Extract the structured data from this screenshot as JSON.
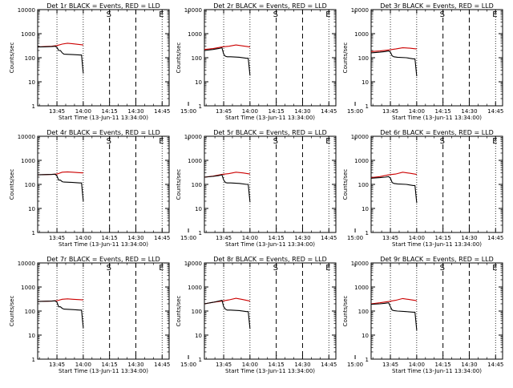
{
  "colors": {
    "events": "#000000",
    "lld": "#cc0000",
    "axes": "#000000"
  },
  "shared": {
    "xlabel": "Start Time (13-Jun-11 13:34:00)",
    "ylabel": "Counts/sec",
    "x_ticks": [
      "13:45",
      "14:00",
      "14:15",
      "14:30",
      "14:45",
      "15:00"
    ],
    "y_ticks": [
      "1",
      "10",
      "100",
      "1000",
      "10000"
    ],
    "marker_s": "S",
    "marker_e": "E"
  },
  "chart_data": [
    {
      "type": "line",
      "title": "Det 1r BLACK = Events, RED = LLD",
      "x_tick_labels": [
        "13:45",
        "14:00",
        "14:15",
        "14:30",
        "14:45",
        "15:00"
      ],
      "xlim_min": [
        0,
        75
      ],
      "ylim": [
        1,
        10000
      ],
      "y_scale": "log",
      "ylabel": "Counts/sec",
      "xlabel": "Start Time (13-Jun-11 13:34:00)",
      "vlines_dotted_min": [
        11,
        26,
        71
      ],
      "vlines_dashed_min": [
        41,
        56
      ],
      "s_marker_min": 41,
      "e_marker_min": 71,
      "series": [
        {
          "color": "#cc0000",
          "x": [
            0,
            4,
            8,
            11,
            14,
            17,
            20,
            23,
            26
          ],
          "y": [
            280,
            290,
            300,
            320,
            370,
            400,
            380,
            360,
            340
          ]
        },
        {
          "color": "#000000",
          "x": [
            0,
            4,
            8,
            10,
            11,
            12,
            13,
            14,
            15,
            20,
            24,
            25,
            26
          ],
          "y": [
            280,
            285,
            290,
            300,
            270,
            200,
            200,
            160,
            140,
            135,
            130,
            130,
            22
          ]
        }
      ]
    },
    {
      "type": "line",
      "title": "Det 2r BLACK = Events, RED = LLD",
      "x_tick_labels": [
        "13:45",
        "14:00",
        "14:15",
        "14:30",
        "14:45",
        "15:00"
      ],
      "xlim_min": [
        0,
        75
      ],
      "ylim": [
        1,
        10000
      ],
      "y_scale": "log",
      "ylabel": "Counts/sec",
      "xlabel": "Start Time (13-Jun-11 13:34:00)",
      "vlines_dotted_min": [
        11,
        26,
        71
      ],
      "vlines_dashed_min": [
        41,
        56
      ],
      "s_marker_min": 41,
      "e_marker_min": 71,
      "series": [
        {
          "color": "#cc0000",
          "x": [
            0,
            5,
            10,
            14,
            18,
            22,
            26
          ],
          "y": [
            220,
            240,
            280,
            300,
            340,
            310,
            280
          ]
        },
        {
          "color": "#000000",
          "x": [
            0,
            5,
            8,
            10,
            11,
            12,
            13,
            15,
            20,
            24,
            25,
            26
          ],
          "y": [
            200,
            220,
            240,
            260,
            140,
            115,
            110,
            110,
            105,
            95,
            95,
            18
          ]
        }
      ]
    },
    {
      "type": "line",
      "title": "Det 3r BLACK = Events, RED = LLD",
      "x_tick_labels": [
        "13:45",
        "14:00",
        "14:15",
        "14:30",
        "14:45",
        "15:00"
      ],
      "xlim_min": [
        0,
        75
      ],
      "ylim": [
        1,
        10000
      ],
      "y_scale": "log",
      "ylabel": "Counts/sec",
      "xlabel": "Start Time (13-Jun-11 13:34:00)",
      "vlines_dotted_min": [
        11,
        26,
        71
      ],
      "vlines_dashed_min": [
        41,
        56
      ],
      "s_marker_min": 41,
      "e_marker_min": 71,
      "series": [
        {
          "color": "#cc0000",
          "x": [
            0,
            5,
            10,
            14,
            18,
            22,
            26
          ],
          "y": [
            180,
            190,
            210,
            230,
            260,
            250,
            230
          ]
        },
        {
          "color": "#000000",
          "x": [
            0,
            5,
            8,
            10,
            11,
            12,
            13,
            15,
            20,
            24,
            25,
            26
          ],
          "y": [
            160,
            170,
            180,
            190,
            170,
            120,
            110,
            105,
            100,
            90,
            90,
            17
          ]
        }
      ]
    },
    {
      "type": "line",
      "title": "Det 4r BLACK = Events, RED = LLD",
      "x_tick_labels": [
        "13:45",
        "14:00",
        "14:15",
        "14:30",
        "14:45",
        "15:00"
      ],
      "xlim_min": [
        0,
        75
      ],
      "ylim": [
        1,
        10000
      ],
      "y_scale": "log",
      "ylabel": "Counts/sec",
      "xlabel": "Start Time (13-Jun-11 13:34:00)",
      "vlines_dotted_min": [
        11,
        26,
        71
      ],
      "vlines_dashed_min": [
        41,
        56
      ],
      "s_marker_min": 41,
      "e_marker_min": 71,
      "series": [
        {
          "color": "#cc0000",
          "x": [
            0,
            4,
            8,
            11,
            14,
            17,
            20,
            23,
            26
          ],
          "y": [
            250,
            255,
            260,
            270,
            320,
            330,
            320,
            310,
            300
          ]
        },
        {
          "color": "#000000",
          "x": [
            0,
            4,
            8,
            10,
            11,
            12,
            13,
            14,
            15,
            20,
            24,
            25,
            26
          ],
          "y": [
            250,
            255,
            260,
            265,
            220,
            150,
            150,
            130,
            125,
            120,
            115,
            115,
            20
          ]
        }
      ]
    },
    {
      "type": "line",
      "title": "Det 5r BLACK = Events, RED = LLD",
      "x_tick_labels": [
        "13:45",
        "14:00",
        "14:15",
        "14:30",
        "14:45",
        "15:00"
      ],
      "xlim_min": [
        0,
        75
      ],
      "ylim": [
        1,
        10000
      ],
      "y_scale": "log",
      "ylabel": "Counts/sec",
      "xlabel": "Start Time (13-Jun-11 13:34:00)",
      "vlines_dotted_min": [
        11,
        26,
        71
      ],
      "vlines_dashed_min": [
        41,
        56
      ],
      "s_marker_min": 41,
      "e_marker_min": 71,
      "series": [
        {
          "color": "#cc0000",
          "x": [
            0,
            5,
            10,
            14,
            18,
            22,
            26
          ],
          "y": [
            200,
            220,
            260,
            280,
            320,
            300,
            270
          ]
        },
        {
          "color": "#000000",
          "x": [
            0,
            5,
            8,
            10,
            11,
            12,
            13,
            15,
            20,
            24,
            25,
            26
          ],
          "y": [
            200,
            215,
            230,
            250,
            150,
            120,
            115,
            115,
            110,
            100,
            100,
            18
          ]
        }
      ]
    },
    {
      "type": "line",
      "title": "Det 6r BLACK = Events, RED = LLD",
      "x_tick_labels": [
        "13:45",
        "14:00",
        "14:15",
        "14:30",
        "14:45",
        "15:00"
      ],
      "xlim_min": [
        0,
        75
      ],
      "ylim": [
        1,
        10000
      ],
      "y_scale": "log",
      "ylabel": "Counts/sec",
      "xlabel": "Start Time (13-Jun-11 13:34:00)",
      "vlines_dotted_min": [
        11,
        26,
        71
      ],
      "vlines_dashed_min": [
        41,
        56
      ],
      "s_marker_min": 41,
      "e_marker_min": 71,
      "series": [
        {
          "color": "#cc0000",
          "x": [
            0,
            5,
            10,
            14,
            18,
            22,
            26
          ],
          "y": [
            190,
            210,
            250,
            270,
            320,
            290,
            260
          ]
        },
        {
          "color": "#000000",
          "x": [
            0,
            5,
            8,
            10,
            11,
            12,
            13,
            15,
            20,
            24,
            25,
            26
          ],
          "y": [
            180,
            190,
            200,
            210,
            180,
            120,
            110,
            105,
            100,
            90,
            90,
            17
          ]
        }
      ]
    },
    {
      "type": "line",
      "title": "Det 7r BLACK = Events, RED = LLD",
      "x_tick_labels": [
        "13:45",
        "14:00",
        "14:15",
        "14:30",
        "14:45",
        "15:00"
      ],
      "xlim_min": [
        0,
        75
      ],
      "ylim": [
        1,
        10000
      ],
      "y_scale": "log",
      "ylabel": "Counts/sec",
      "xlabel": "Start Time (13-Jun-11 13:34:00)",
      "vlines_dotted_min": [
        11,
        26,
        71
      ],
      "vlines_dashed_min": [
        41,
        56
      ],
      "s_marker_min": 41,
      "e_marker_min": 71,
      "series": [
        {
          "color": "#cc0000",
          "x": [
            0,
            4,
            8,
            11,
            14,
            17,
            20,
            23,
            26
          ],
          "y": [
            250,
            255,
            260,
            270,
            310,
            320,
            310,
            300,
            290
          ]
        },
        {
          "color": "#000000",
          "x": [
            0,
            4,
            8,
            10,
            11,
            12,
            13,
            14,
            15,
            20,
            24,
            25,
            26
          ],
          "y": [
            250,
            255,
            260,
            265,
            230,
            150,
            150,
            130,
            120,
            115,
            110,
            110,
            20
          ]
        }
      ]
    },
    {
      "type": "line",
      "title": "Det 8r BLACK = Events, RED = LLD",
      "x_tick_labels": [
        "13:45",
        "14:00",
        "14:15",
        "14:30",
        "14:45",
        "15:00"
      ],
      "xlim_min": [
        0,
        75
      ],
      "ylim": [
        1,
        10000
      ],
      "y_scale": "log",
      "ylabel": "Counts/sec",
      "xlabel": "Start Time (13-Jun-11 13:34:00)",
      "vlines_dotted_min": [
        11,
        26,
        71
      ],
      "vlines_dashed_min": [
        41,
        56
      ],
      "s_marker_min": 41,
      "e_marker_min": 71,
      "series": [
        {
          "color": "#cc0000",
          "x": [
            0,
            5,
            10,
            14,
            18,
            22,
            26
          ],
          "y": [
            200,
            230,
            260,
            290,
            340,
            300,
            260
          ]
        },
        {
          "color": "#000000",
          "x": [
            0,
            5,
            8,
            10,
            11,
            12,
            13,
            15,
            20,
            24,
            25,
            26
          ],
          "y": [
            200,
            230,
            260,
            280,
            150,
            120,
            110,
            110,
            105,
            95,
            95,
            18
          ]
        }
      ]
    },
    {
      "type": "line",
      "title": "Det 9r BLACK = Events, RED = LLD",
      "x_tick_labels": [
        "13:45",
        "14:00",
        "14:15",
        "14:30",
        "14:45",
        "15:00"
      ],
      "xlim_min": [
        0,
        75
      ],
      "ylim": [
        1,
        10000
      ],
      "y_scale": "log",
      "ylabel": "Counts/sec",
      "xlabel": "Start Time (13-Jun-11 13:34:00)",
      "vlines_dotted_min": [
        11,
        26,
        71
      ],
      "vlines_dashed_min": [
        41,
        56
      ],
      "s_marker_min": 41,
      "e_marker_min": 71,
      "series": [
        {
          "color": "#cc0000",
          "x": [
            0,
            5,
            10,
            14,
            18,
            22,
            26
          ],
          "y": [
            200,
            220,
            250,
            280,
            330,
            300,
            270
          ]
        },
        {
          "color": "#000000",
          "x": [
            0,
            5,
            8,
            10,
            11,
            12,
            13,
            15,
            20,
            24,
            25,
            26
          ],
          "y": [
            190,
            200,
            210,
            220,
            150,
            110,
            105,
            100,
            95,
            90,
            90,
            16
          ]
        }
      ]
    }
  ]
}
